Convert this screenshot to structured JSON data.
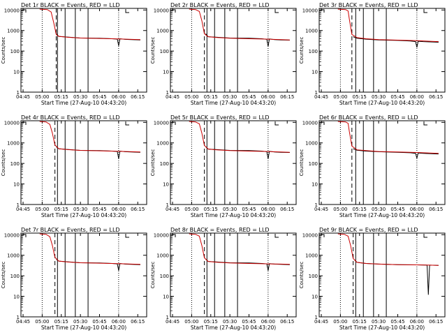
{
  "figure": {
    "time_origin_label": "27-Aug-10 04:43:20"
  },
  "colors": {
    "events": "#000000",
    "lld": "#cc0000",
    "axis": "#000000",
    "background": "#ffffff"
  },
  "legend": {
    "black_meaning": "Events",
    "red_meaning": "LLD"
  },
  "chart_data": [
    {
      "type": "line",
      "title": "Det 1r BLACK = Events, RED = LLD",
      "xlabel": "Start Time (27-Aug-10 04:43:20)",
      "ylabel": "Counts/sec",
      "y_scale": "log",
      "ylim": [
        1,
        12000
      ],
      "y_ticks": [
        1,
        10,
        100,
        1000,
        10000
      ],
      "y_tick_labels": [
        "1",
        "10",
        "100",
        "1000",
        "10000"
      ],
      "x_ticks": [
        "04:45",
        "05:00",
        "05:15",
        "05:30",
        "05:45",
        "06:00",
        "06:15"
      ],
      "dotted_lines": [
        "05:00",
        "06:00"
      ],
      "dashed_lines": [
        "05:11"
      ],
      "solid_lines": [
        "05:12",
        "05:18",
        "05:26",
        "05:36"
      ],
      "series": [
        {
          "name": "Events",
          "color": "#000000",
          "x": [
            "05:11",
            "05:13",
            "05:20",
            "05:30",
            "05:45",
            "05:55",
            "05:59",
            "06:00",
            "06:01",
            "06:05",
            "06:10",
            "06:17"
          ],
          "y": [
            700,
            520,
            480,
            430,
            420,
            400,
            380,
            180,
            400,
            370,
            360,
            350
          ]
        },
        {
          "name": "LLD",
          "color": "#cc0000",
          "x": [
            "04:58",
            "05:04",
            "05:07",
            "05:09",
            "05:11",
            "05:13",
            "05:20",
            "05:30",
            "05:45",
            "06:00",
            "06:10",
            "06:17"
          ],
          "y": [
            11000,
            10500,
            8000,
            2500,
            650,
            520,
            470,
            430,
            410,
            390,
            370,
            360
          ]
        }
      ]
    },
    {
      "type": "line",
      "title": "Det 2r BLACK = Events, RED = LLD",
      "xlabel": "Start Time (27-Aug-10 04:43:20)",
      "ylabel": "Counts/sec",
      "y_scale": "log",
      "ylim": [
        1,
        12000
      ],
      "y_ticks": [
        1,
        10,
        100,
        1000,
        10000
      ],
      "y_tick_labels": [
        "1",
        "10",
        "100",
        "1000",
        "10000"
      ],
      "x_ticks": [
        "04:45",
        "05:00",
        "05:15",
        "05:30",
        "05:45",
        "06:00",
        "06:15"
      ],
      "dotted_lines": [
        "05:00",
        "06:00"
      ],
      "dashed_lines": [
        "05:10"
      ],
      "solid_lines": [
        "05:12",
        "05:18",
        "05:26",
        "05:36"
      ],
      "series": [
        {
          "name": "Events",
          "color": "#000000",
          "x": [
            "05:11",
            "05:13",
            "05:20",
            "05:30",
            "05:45",
            "05:55",
            "05:59",
            "06:00",
            "06:01",
            "06:05",
            "06:10",
            "06:17"
          ],
          "y": [
            700,
            500,
            470,
            430,
            420,
            400,
            370,
            170,
            390,
            360,
            350,
            340
          ]
        },
        {
          "name": "LLD",
          "color": "#cc0000",
          "x": [
            "04:58",
            "05:03",
            "05:06",
            "05:08",
            "05:10",
            "05:13",
            "05:20",
            "05:30",
            "05:45",
            "06:00",
            "06:10",
            "06:17"
          ],
          "y": [
            11000,
            10500,
            8500,
            3000,
            700,
            500,
            460,
            420,
            400,
            380,
            360,
            350
          ]
        }
      ]
    },
    {
      "type": "line",
      "title": "Det 3r BLACK = Events, RED = LLD",
      "xlabel": "Start Time (27-Aug-10 04:43:20)",
      "ylabel": "Counts/sec",
      "y_scale": "log",
      "ylim": [
        1,
        12000
      ],
      "y_ticks": [
        1,
        10,
        100,
        1000,
        10000
      ],
      "y_tick_labels": [
        "1",
        "10",
        "100",
        "1000",
        "10000"
      ],
      "x_ticks": [
        "04:45",
        "05:00",
        "05:15",
        "05:30",
        "05:45",
        "06:00",
        "06:15"
      ],
      "dotted_lines": [
        "05:00",
        "06:00"
      ],
      "dashed_lines": [
        "05:09"
      ],
      "solid_lines": [
        "05:12",
        "05:18",
        "05:26",
        "05:36"
      ],
      "series": [
        {
          "name": "Events",
          "color": "#000000",
          "x": [
            "05:10",
            "05:13",
            "05:20",
            "05:30",
            "05:45",
            "05:55",
            "05:59",
            "06:00",
            "06:01",
            "06:05",
            "06:10",
            "06:17"
          ],
          "y": [
            500,
            420,
            380,
            350,
            330,
            310,
            290,
            150,
            300,
            290,
            280,
            270
          ]
        },
        {
          "name": "LLD",
          "color": "#cc0000",
          "x": [
            "04:58",
            "05:04",
            "05:06",
            "05:07",
            "05:09",
            "05:13",
            "05:20",
            "05:30",
            "05:45",
            "06:00",
            "06:10",
            "06:17"
          ],
          "y": [
            11000,
            10500,
            9000,
            3500,
            650,
            450,
            400,
            360,
            340,
            320,
            300,
            290
          ]
        }
      ]
    },
    {
      "type": "line",
      "title": "Det 4r BLACK = Events, RED = LLD",
      "xlabel": "Start Time (27-Aug-10 04:43:20)",
      "ylabel": "Counts/sec",
      "y_scale": "log",
      "ylim": [
        1,
        12000
      ],
      "y_ticks": [
        1,
        10,
        100,
        1000,
        10000
      ],
      "y_tick_labels": [
        "1",
        "10",
        "100",
        "1000",
        "10000"
      ],
      "x_ticks": [
        "04:45",
        "05:00",
        "05:15",
        "05:30",
        "05:45",
        "06:00",
        "06:15"
      ],
      "dotted_lines": [
        "05:00",
        "06:00"
      ],
      "dashed_lines": [
        "05:10"
      ],
      "solid_lines": [
        "05:12",
        "05:18",
        "05:26",
        "05:36"
      ],
      "series": [
        {
          "name": "Events",
          "color": "#000000",
          "x": [
            "05:11",
            "05:13",
            "05:20",
            "05:30",
            "05:45",
            "05:55",
            "05:59",
            "06:00",
            "06:01",
            "06:05",
            "06:10",
            "06:17"
          ],
          "y": [
            650,
            520,
            480,
            430,
            420,
            400,
            380,
            170,
            400,
            370,
            360,
            350
          ]
        },
        {
          "name": "LLD",
          "color": "#cc0000",
          "x": [
            "04:58",
            "05:03",
            "05:06",
            "05:08",
            "05:10",
            "05:13",
            "05:20",
            "05:30",
            "05:45",
            "06:00",
            "06:10",
            "06:17"
          ],
          "y": [
            11000,
            10500,
            8000,
            3000,
            800,
            520,
            470,
            430,
            410,
            390,
            370,
            360
          ]
        }
      ]
    },
    {
      "type": "line",
      "title": "Det 5r BLACK = Events, RED = LLD",
      "xlabel": "Start Time (27-Aug-10 04:43:20)",
      "ylabel": "Counts/sec",
      "y_scale": "log",
      "ylim": [
        1,
        12000
      ],
      "y_ticks": [
        1,
        10,
        100,
        1000,
        10000
      ],
      "y_tick_labels": [
        "1",
        "10",
        "100",
        "1000",
        "10000"
      ],
      "x_ticks": [
        "04:45",
        "05:00",
        "05:15",
        "05:30",
        "05:45",
        "06:00",
        "06:15"
      ],
      "dotted_lines": [
        "05:00",
        "06:00"
      ],
      "dashed_lines": [
        "05:10"
      ],
      "solid_lines": [
        "05:12",
        "05:18",
        "05:26",
        "05:36"
      ],
      "series": [
        {
          "name": "Events",
          "color": "#000000",
          "x": [
            "05:11",
            "05:13",
            "05:20",
            "05:30",
            "05:45",
            "05:55",
            "05:59",
            "06:00",
            "06:01",
            "06:05",
            "06:10",
            "06:17"
          ],
          "y": [
            650,
            500,
            470,
            430,
            420,
            400,
            370,
            170,
            390,
            360,
            350,
            340
          ]
        },
        {
          "name": "LLD",
          "color": "#cc0000",
          "x": [
            "04:58",
            "05:03",
            "05:06",
            "05:08",
            "05:10",
            "05:13",
            "05:20",
            "05:30",
            "05:45",
            "06:00",
            "06:10",
            "06:17"
          ],
          "y": [
            11000,
            10500,
            8500,
            3000,
            750,
            500,
            460,
            420,
            400,
            380,
            360,
            350
          ]
        }
      ]
    },
    {
      "type": "line",
      "title": "Det 6r BLACK = Events, RED = LLD",
      "xlabel": "Start Time (27-Aug-10 04:43:20)",
      "ylabel": "Counts/sec",
      "y_scale": "log",
      "ylim": [
        1,
        12000
      ],
      "y_ticks": [
        1,
        10,
        100,
        1000,
        10000
      ],
      "y_tick_labels": [
        "1",
        "10",
        "100",
        "1000",
        "10000"
      ],
      "x_ticks": [
        "04:45",
        "05:00",
        "05:15",
        "05:30",
        "05:45",
        "06:00",
        "06:15"
      ],
      "dotted_lines": [
        "05:00",
        "06:00"
      ],
      "dashed_lines": [
        "05:09"
      ],
      "solid_lines": [
        "05:12",
        "05:18",
        "05:26",
        "05:36"
      ],
      "series": [
        {
          "name": "Events",
          "color": "#000000",
          "x": [
            "05:10",
            "05:13",
            "05:20",
            "05:30",
            "05:45",
            "05:55",
            "05:59",
            "06:00",
            "06:01",
            "06:05",
            "06:10",
            "06:17"
          ],
          "y": [
            520,
            440,
            400,
            370,
            350,
            330,
            310,
            180,
            320,
            310,
            300,
            290
          ]
        },
        {
          "name": "LLD",
          "color": "#cc0000",
          "x": [
            "04:58",
            "05:04",
            "05:06",
            "05:07",
            "05:09",
            "05:13",
            "05:20",
            "05:30",
            "05:45",
            "06:00",
            "06:10",
            "06:17"
          ],
          "y": [
            11000,
            10500,
            9000,
            3500,
            700,
            460,
            420,
            380,
            360,
            340,
            320,
            310
          ]
        }
      ]
    },
    {
      "type": "line",
      "title": "Det 7r BLACK = Events, RED = LLD",
      "xlabel": "Start Time (27-Aug-10 04:43:20)",
      "ylabel": "Counts/sec",
      "y_scale": "log",
      "ylim": [
        1,
        12000
      ],
      "y_ticks": [
        1,
        10,
        100,
        1000,
        10000
      ],
      "y_tick_labels": [
        "1",
        "10",
        "100",
        "1000",
        "10000"
      ],
      "x_ticks": [
        "04:45",
        "05:00",
        "05:15",
        "05:30",
        "05:45",
        "06:00",
        "06:15"
      ],
      "dotted_lines": [
        "05:00",
        "06:00"
      ],
      "dashed_lines": [
        "05:10"
      ],
      "solid_lines": [
        "05:12",
        "05:18",
        "05:26",
        "05:36"
      ],
      "series": [
        {
          "name": "Events",
          "color": "#000000",
          "x": [
            "05:11",
            "05:13",
            "05:20",
            "05:30",
            "05:45",
            "05:55",
            "05:59",
            "06:00",
            "06:01",
            "06:05",
            "06:10",
            "06:17"
          ],
          "y": [
            650,
            520,
            480,
            430,
            420,
            400,
            380,
            180,
            400,
            370,
            360,
            350
          ]
        },
        {
          "name": "LLD",
          "color": "#cc0000",
          "x": [
            "04:58",
            "05:03",
            "05:06",
            "05:08",
            "05:10",
            "05:13",
            "05:20",
            "05:30",
            "05:45",
            "06:00",
            "06:10",
            "06:17"
          ],
          "y": [
            11000,
            10500,
            8000,
            3000,
            800,
            520,
            470,
            430,
            410,
            390,
            370,
            360
          ]
        }
      ]
    },
    {
      "type": "line",
      "title": "Det 8r BLACK = Events, RED = LLD",
      "xlabel": "Start Time (27-Aug-10 04:43:20)",
      "ylabel": "Counts/sec",
      "y_scale": "log",
      "ylim": [
        1,
        12000
      ],
      "y_ticks": [
        1,
        10,
        100,
        1000,
        10000
      ],
      "y_tick_labels": [
        "1",
        "10",
        "100",
        "1000",
        "10000"
      ],
      "x_ticks": [
        "04:45",
        "05:00",
        "05:15",
        "05:30",
        "05:45",
        "06:00",
        "06:15"
      ],
      "dotted_lines": [
        "05:00",
        "06:00"
      ],
      "dashed_lines": [
        "05:10"
      ],
      "solid_lines": [
        "05:12",
        "05:18",
        "05:26",
        "05:36"
      ],
      "series": [
        {
          "name": "Events",
          "color": "#000000",
          "x": [
            "05:11",
            "05:13",
            "05:20",
            "05:30",
            "05:45",
            "05:55",
            "05:59",
            "06:00",
            "06:01",
            "06:05",
            "06:10",
            "06:17"
          ],
          "y": [
            650,
            500,
            470,
            430,
            420,
            400,
            380,
            180,
            390,
            370,
            360,
            350
          ]
        },
        {
          "name": "LLD",
          "color": "#cc0000",
          "x": [
            "04:58",
            "05:03",
            "05:06",
            "05:08",
            "05:10",
            "05:13",
            "05:20",
            "05:30",
            "05:45",
            "06:00",
            "06:10",
            "06:17"
          ],
          "y": [
            11000,
            10500,
            8500,
            3000,
            750,
            500,
            460,
            420,
            400,
            380,
            370,
            360
          ]
        }
      ]
    },
    {
      "type": "line",
      "title": "Det 9r BLACK = Events, RED = LLD",
      "xlabel": "Start Time (27-Aug-10 04:43:20)",
      "ylabel": "Counts/sec",
      "y_scale": "log",
      "ylim": [
        1,
        12000
      ],
      "y_ticks": [
        1,
        10,
        100,
        1000,
        10000
      ],
      "y_tick_labels": [
        "1",
        "10",
        "100",
        "1000",
        "10000"
      ],
      "x_ticks": [
        "04:45",
        "05:00",
        "05:15",
        "05:30",
        "05:45",
        "06:00",
        "06:15"
      ],
      "dotted_lines": [
        "05:00",
        "06:00"
      ],
      "dashed_lines": [
        "05:10"
      ],
      "solid_lines": [
        "05:12",
        "05:18",
        "05:26",
        "05:36"
      ],
      "series": [
        {
          "name": "Events",
          "color": "#000000",
          "x": [
            "05:11",
            "05:13",
            "05:20",
            "05:30",
            "05:45",
            "06:00",
            "06:08",
            "06:09",
            "06:10",
            "06:17"
          ],
          "y": [
            600,
            450,
            400,
            370,
            350,
            340,
            330,
            12,
            330,
            320
          ]
        },
        {
          "name": "LLD",
          "color": "#cc0000",
          "x": [
            "04:58",
            "05:03",
            "05:06",
            "05:08",
            "05:10",
            "05:13",
            "05:20",
            "05:30",
            "05:45",
            "06:00",
            "06:10",
            "06:17"
          ],
          "y": [
            11000,
            10500,
            8500,
            3000,
            700,
            450,
            400,
            370,
            350,
            340,
            330,
            320
          ]
        }
      ]
    }
  ]
}
